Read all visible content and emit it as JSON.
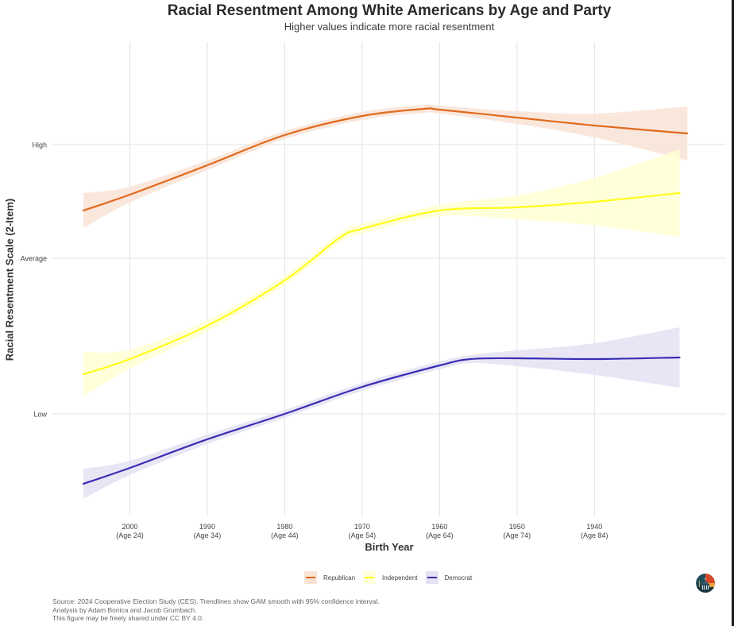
{
  "title": "Racial Resentment Among White Americans by Age and Party",
  "subtitle": "Higher values indicate more racial resentment",
  "caption": [
    "Source: 2024 Cooperative Election Study (CES). Trendlines show GAM smooth with 95% confidence interval.",
    "Analysis by Adam Bonica and Jacob Grumbach.",
    "This figure may be freely shared under CC BY 4.0."
  ],
  "logo_icon": "capitol-building-logo-icon",
  "chart_data": {
    "type": "line",
    "title": "Racial Resentment Among White Americans by Age and Party",
    "subtitle": "Higher values indicate more racial resentment",
    "xlabel": "Birth Year",
    "ylabel": "Racial Resentment Scale (2-Item)",
    "x_reversed": true,
    "xlim": [
      2010,
      1923
    ],
    "ylim": [
      -1.29,
      4.68
    ],
    "x_ticks": [
      {
        "value": 2000,
        "label": "2000",
        "sublabel": "(Age 24)"
      },
      {
        "value": 1990,
        "label": "1990",
        "sublabel": "(Age 34)"
      },
      {
        "value": 1980,
        "label": "1980",
        "sublabel": "(Age 44)"
      },
      {
        "value": 1970,
        "label": "1970",
        "sublabel": "(Age 54)"
      },
      {
        "value": 1960,
        "label": "1960",
        "sublabel": "(Age 64)"
      },
      {
        "value": 1950,
        "label": "1950",
        "sublabel": "(Age 74)"
      },
      {
        "value": 1940,
        "label": "1940",
        "sublabel": "(Age 84)"
      }
    ],
    "y_ticks": [
      {
        "value": 0,
        "label": "Low"
      },
      {
        "value": 1.96,
        "label": "Average"
      },
      {
        "value": 3.39,
        "label": "High"
      }
    ],
    "grid": true,
    "legend_position": "bottom",
    "series": [
      {
        "name": "Republican",
        "color": "#E06A1E",
        "fill": "#F9E3D6",
        "x": [
          2006,
          2000,
          1990,
          1980,
          1970,
          1962,
          1960,
          1950,
          1940,
          1928
        ],
        "y": [
          2.56,
          2.76,
          3.13,
          3.51,
          3.75,
          3.84,
          3.83,
          3.73,
          3.63,
          3.53
        ],
        "ci": [
          0.22,
          0.1,
          0.06,
          0.05,
          0.05,
          0.05,
          0.05,
          0.08,
          0.15,
          0.34
        ]
      },
      {
        "name": "Independent",
        "color": "#FFFF1A",
        "fill": "#FFFFD2",
        "x": [
          2006,
          2000,
          1990,
          1980,
          1973,
          1970,
          1960,
          1950,
          1940,
          1929
        ],
        "y": [
          0.5,
          0.69,
          1.11,
          1.68,
          2.21,
          2.33,
          2.56,
          2.6,
          2.67,
          2.78
        ],
        "ci": [
          0.28,
          0.12,
          0.07,
          0.06,
          0.06,
          0.06,
          0.07,
          0.15,
          0.3,
          0.55
        ]
      },
      {
        "name": "Democrat",
        "color": "#3A2DB4",
        "fill": "#E4E2F3",
        "x": [
          2006,
          2000,
          1990,
          1980,
          1970,
          1960,
          1956,
          1950,
          1940,
          1929
        ],
        "y": [
          -0.88,
          -0.68,
          -0.32,
          0.0,
          0.34,
          0.61,
          0.69,
          0.7,
          0.69,
          0.71
        ],
        "ci": [
          0.19,
          0.09,
          0.06,
          0.05,
          0.05,
          0.05,
          0.05,
          0.1,
          0.2,
          0.38
        ]
      }
    ]
  }
}
